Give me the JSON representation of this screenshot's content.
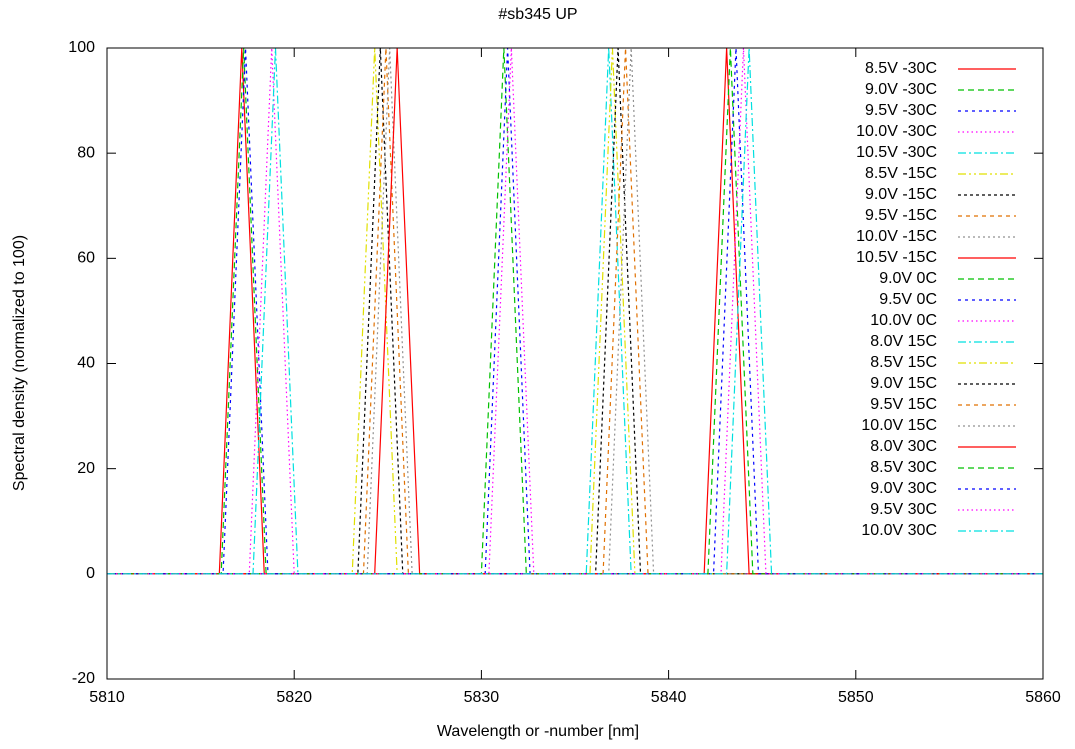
{
  "chart_data": {
    "type": "line",
    "title": "#sb345 UP",
    "x_label": "Wavelength or -number [nm]",
    "y_label": "Spectral density (normalized to 100)",
    "xlim": [
      5810,
      5860
    ],
    "xticks": [
      5810,
      5820,
      5830,
      5840,
      5850,
      5860
    ],
    "ylim": [
      -20,
      100
    ],
    "yticks": [
      -20,
      0,
      20,
      40,
      60,
      80,
      100
    ],
    "legend": "top-right",
    "series": [
      {
        "name": "8.5V -30C",
        "color": "#ff0000",
        "x": [
          5810,
          5816.0,
          5816.6,
          5817.2,
          5817.8,
          5818.4,
          5860
        ],
        "values": [
          0,
          0,
          50,
          100,
          50,
          0,
          0
        ]
      },
      {
        "name": "9.0V -30C",
        "color": "#00c000",
        "x": [
          5810,
          5816.1,
          5816.7,
          5817.3,
          5817.9,
          5818.5,
          5860
        ],
        "values": [
          0,
          0,
          50,
          100,
          50,
          0,
          0
        ]
      },
      {
        "name": "9.5V -30C",
        "color": "#0000ff",
        "x": [
          5810,
          5816.2,
          5816.8,
          5817.4,
          5818.0,
          5818.6,
          5860
        ],
        "values": [
          0,
          0,
          50,
          100,
          50,
          0,
          0
        ]
      },
      {
        "name": "10.0V -30C",
        "color": "#ff00ff",
        "x": [
          5810,
          5817.6,
          5818.2,
          5818.8,
          5819.4,
          5820.0,
          5860
        ],
        "values": [
          0,
          0,
          50,
          100,
          50,
          0,
          0
        ]
      },
      {
        "name": "10.5V -30C",
        "color": "#00e0e0",
        "x": [
          5810,
          5817.8,
          5818.4,
          5819.0,
          5819.6,
          5820.2,
          5860
        ],
        "values": [
          0,
          0,
          50,
          100,
          50,
          0,
          0
        ]
      },
      {
        "name": "8.5V -15C",
        "color": "#e0e000",
        "x": [
          5810,
          5823.1,
          5823.7,
          5824.3,
          5824.9,
          5825.5,
          5860
        ],
        "values": [
          0,
          0,
          50,
          100,
          50,
          0,
          0
        ]
      },
      {
        "name": "9.0V -15C",
        "color": "#000000",
        "x": [
          5810,
          5823.4,
          5824.0,
          5824.6,
          5825.2,
          5825.8,
          5860
        ],
        "values": [
          0,
          0,
          50,
          100,
          50,
          0,
          0
        ]
      },
      {
        "name": "9.5V -15C",
        "color": "#e07000",
        "x": [
          5810,
          5823.7,
          5824.3,
          5824.9,
          5825.5,
          5826.1,
          5860
        ],
        "values": [
          0,
          0,
          50,
          100,
          50,
          0,
          0
        ]
      },
      {
        "name": "10.0V -15C",
        "color": "#909090",
        "x": [
          5810,
          5823.9,
          5824.5,
          5825.1,
          5825.7,
          5826.3,
          5860
        ],
        "values": [
          0,
          0,
          50,
          100,
          50,
          0,
          0
        ]
      },
      {
        "name": "10.5V -15C",
        "color": "#ff0000",
        "x": [
          5810,
          5824.3,
          5824.9,
          5825.5,
          5826.1,
          5826.7,
          5860
        ],
        "values": [
          0,
          0,
          50,
          100,
          50,
          0,
          0
        ]
      },
      {
        "name": "9.0V 0C",
        "color": "#00c000",
        "x": [
          5810,
          5830.0,
          5830.6,
          5831.2,
          5831.8,
          5832.4,
          5860
        ],
        "values": [
          0,
          0,
          50,
          100,
          50,
          0,
          0
        ]
      },
      {
        "name": "9.5V 0C",
        "color": "#0000ff",
        "x": [
          5810,
          5830.2,
          5830.8,
          5831.4,
          5832.0,
          5832.6,
          5860
        ],
        "values": [
          0,
          0,
          50,
          100,
          50,
          0,
          0
        ]
      },
      {
        "name": "10.0V 0C",
        "color": "#ff00ff",
        "x": [
          5810,
          5830.4,
          5831.0,
          5831.6,
          5832.2,
          5832.8,
          5860
        ],
        "values": [
          0,
          0,
          50,
          100,
          50,
          0,
          0
        ]
      },
      {
        "name": "8.0V 15C",
        "color": "#00e0e0",
        "x": [
          5810,
          5835.6,
          5836.2,
          5836.8,
          5837.4,
          5838.0,
          5860
        ],
        "values": [
          0,
          0,
          50,
          100,
          50,
          0,
          0
        ]
      },
      {
        "name": "8.5V 15C",
        "color": "#e0e000",
        "x": [
          5810,
          5835.8,
          5836.4,
          5837.0,
          5837.6,
          5838.2,
          5860
        ],
        "values": [
          0,
          0,
          50,
          100,
          50,
          0,
          0
        ]
      },
      {
        "name": "9.0V 15C",
        "color": "#000000",
        "x": [
          5810,
          5836.1,
          5836.7,
          5837.3,
          5837.9,
          5838.5,
          5860
        ],
        "values": [
          0,
          0,
          50,
          100,
          50,
          0,
          0
        ]
      },
      {
        "name": "9.5V 15C",
        "color": "#e07000",
        "x": [
          5810,
          5836.5,
          5837.1,
          5837.7,
          5838.3,
          5838.9,
          5860
        ],
        "values": [
          0,
          0,
          50,
          100,
          50,
          0,
          0
        ]
      },
      {
        "name": "10.0V 15C",
        "color": "#909090",
        "x": [
          5810,
          5836.8,
          5837.4,
          5838.0,
          5838.6,
          5839.2,
          5860
        ],
        "values": [
          0,
          0,
          50,
          100,
          50,
          0,
          0
        ]
      },
      {
        "name": "8.0V 30C",
        "color": "#ff0000",
        "x": [
          5810,
          5841.9,
          5842.5,
          5843.1,
          5843.7,
          5844.3,
          5860
        ],
        "values": [
          0,
          0,
          50,
          100,
          50,
          0,
          0
        ]
      },
      {
        "name": "8.5V 30C",
        "color": "#00c000",
        "x": [
          5810,
          5842.1,
          5842.7,
          5843.3,
          5843.9,
          5844.5,
          5860
        ],
        "values": [
          0,
          0,
          50,
          100,
          50,
          0,
          0
        ]
      },
      {
        "name": "9.0V 30C",
        "color": "#0000ff",
        "x": [
          5810,
          5842.4,
          5843.0,
          5843.6,
          5844.2,
          5844.8,
          5860
        ],
        "values": [
          0,
          0,
          50,
          100,
          50,
          0,
          0
        ]
      },
      {
        "name": "9.5V 30C",
        "color": "#ff00ff",
        "x": [
          5810,
          5842.8,
          5843.4,
          5844.0,
          5844.6,
          5845.2,
          5860
        ],
        "values": [
          0,
          0,
          50,
          100,
          50,
          0,
          0
        ]
      },
      {
        "name": "10.0V 30C",
        "color": "#00e0e0",
        "x": [
          5810,
          5843.1,
          5843.7,
          5844.3,
          5844.9,
          5845.5,
          5860
        ],
        "values": [
          0,
          0,
          50,
          100,
          50,
          0,
          0
        ]
      }
    ]
  }
}
